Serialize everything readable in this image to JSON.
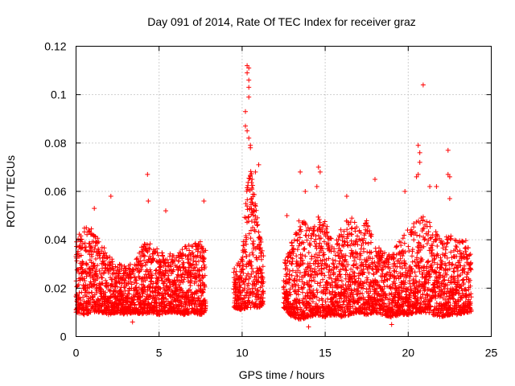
{
  "chart_data": {
    "type": "scatter",
    "title": "Day 091 of 2014, Rate Of TEC Index for receiver graz",
    "xlabel": "GPS time / hours",
    "ylabel": "ROTI / TECUs",
    "xlim": [
      0,
      25
    ],
    "ylim": [
      0,
      0.12
    ],
    "xticks": [
      0,
      5,
      10,
      15,
      20,
      25
    ],
    "xtick_labels": [
      "0",
      "5",
      "10",
      "15",
      "20",
      "25"
    ],
    "yticks": [
      0,
      0.02,
      0.04,
      0.06,
      0.08,
      0.1,
      0.12
    ],
    "ytick_labels": [
      "0",
      "0.02",
      "0.04",
      "0.06",
      "0.08",
      "0.1",
      "0.12"
    ],
    "grid": true,
    "marker": "+",
    "series": [
      {
        "name": "ROTI",
        "color": "#ff0000",
        "envelope_x": [
          0,
          0.5,
          1,
          1.5,
          2,
          2.5,
          3,
          3.5,
          4,
          4.5,
          5,
          5.5,
          6,
          6.5,
          7,
          7.5,
          7.8,
          9.5,
          10,
          10.3,
          10.6,
          11,
          11.3,
          12.5,
          13,
          13.5,
          14,
          14.5,
          15,
          15.5,
          16,
          16.5,
          17,
          17.5,
          18,
          18.5,
          19,
          19.5,
          20,
          20.5,
          21,
          21.5,
          22,
          22.5,
          23,
          23.5,
          23.8
        ],
        "envelope_low": [
          0.01,
          0.009,
          0.01,
          0.01,
          0.009,
          0.01,
          0.009,
          0.01,
          0.009,
          0.01,
          0.009,
          0.01,
          0.01,
          0.009,
          0.01,
          0.009,
          0.01,
          0.012,
          0.011,
          0.012,
          0.012,
          0.012,
          0.013,
          0.012,
          0.008,
          0.007,
          0.008,
          0.009,
          0.008,
          0.009,
          0.008,
          0.009,
          0.01,
          0.009,
          0.01,
          0.009,
          0.008,
          0.009,
          0.009,
          0.01,
          0.01,
          0.009,
          0.008,
          0.009,
          0.009,
          0.01,
          0.01
        ],
        "envelope_high": [
          0.04,
          0.046,
          0.045,
          0.038,
          0.035,
          0.03,
          0.03,
          0.03,
          0.038,
          0.04,
          0.035,
          0.035,
          0.035,
          0.038,
          0.038,
          0.04,
          0.041,
          0.028,
          0.033,
          0.065,
          0.07,
          0.045,
          0.035,
          0.03,
          0.04,
          0.05,
          0.045,
          0.05,
          0.048,
          0.038,
          0.045,
          0.05,
          0.045,
          0.048,
          0.04,
          0.035,
          0.035,
          0.04,
          0.045,
          0.05,
          0.05,
          0.045,
          0.04,
          0.042,
          0.04,
          0.04,
          0.038
        ],
        "outliers": [
          {
            "x": 4.3,
            "y": 0.067
          },
          {
            "x": 4.35,
            "y": 0.056
          },
          {
            "x": 2.1,
            "y": 0.058
          },
          {
            "x": 1.1,
            "y": 0.053
          },
          {
            "x": 7.7,
            "y": 0.056
          },
          {
            "x": 5.4,
            "y": 0.052
          },
          {
            "x": 10.3,
            "y": 0.112
          },
          {
            "x": 10.3,
            "y": 0.109
          },
          {
            "x": 10.4,
            "y": 0.111
          },
          {
            "x": 10.4,
            "y": 0.106
          },
          {
            "x": 10.4,
            "y": 0.103
          },
          {
            "x": 10.4,
            "y": 0.099
          },
          {
            "x": 10.2,
            "y": 0.093
          },
          {
            "x": 10.2,
            "y": 0.087
          },
          {
            "x": 10.3,
            "y": 0.085
          },
          {
            "x": 10.4,
            "y": 0.082
          },
          {
            "x": 10.5,
            "y": 0.079
          },
          {
            "x": 10.5,
            "y": 0.078
          },
          {
            "x": 10.8,
            "y": 0.068
          },
          {
            "x": 11.0,
            "y": 0.071
          },
          {
            "x": 10.6,
            "y": 0.065
          },
          {
            "x": 13.5,
            "y": 0.068
          },
          {
            "x": 14.6,
            "y": 0.07
          },
          {
            "x": 14.7,
            "y": 0.068
          },
          {
            "x": 14.5,
            "y": 0.062
          },
          {
            "x": 18.0,
            "y": 0.065
          },
          {
            "x": 19.8,
            "y": 0.06
          },
          {
            "x": 20.6,
            "y": 0.079
          },
          {
            "x": 20.7,
            "y": 0.076
          },
          {
            "x": 20.7,
            "y": 0.072
          },
          {
            "x": 20.5,
            "y": 0.066
          },
          {
            "x": 20.6,
            "y": 0.067
          },
          {
            "x": 20.9,
            "y": 0.104
          },
          {
            "x": 21.3,
            "y": 0.062
          },
          {
            "x": 21.7,
            "y": 0.062
          },
          {
            "x": 22.4,
            "y": 0.077
          },
          {
            "x": 22.4,
            "y": 0.067
          },
          {
            "x": 22.5,
            "y": 0.066
          },
          {
            "x": 22.5,
            "y": 0.057
          },
          {
            "x": 16.3,
            "y": 0.058
          },
          {
            "x": 12.7,
            "y": 0.05
          },
          {
            "x": 13.8,
            "y": 0.06
          },
          {
            "x": 3.4,
            "y": 0.006
          },
          {
            "x": 14.0,
            "y": 0.004
          },
          {
            "x": 19.0,
            "y": 0.005
          }
        ]
      }
    ]
  }
}
